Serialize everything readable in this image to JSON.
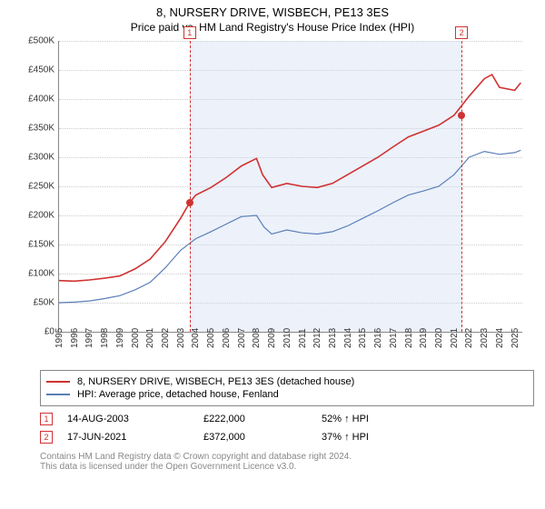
{
  "title_main": "8, NURSERY DRIVE, WISBECH, PE13 3ES",
  "title_sub": "Price paid vs. HM Land Registry's House Price Index (HPI)",
  "chart": {
    "type": "line",
    "background_color": "#ffffff",
    "grid_color": "#cccccc",
    "xlim": [
      1995,
      2025.5
    ],
    "ylim": [
      0,
      500000
    ],
    "ytick_step": 50000,
    "y_ticks": [
      "£0",
      "£50K",
      "£100K",
      "£150K",
      "£200K",
      "£250K",
      "£300K",
      "£350K",
      "£400K",
      "£450K",
      "£500K"
    ],
    "x_ticks": [
      1995,
      1996,
      1997,
      1998,
      1999,
      2000,
      2001,
      2002,
      2003,
      2004,
      2005,
      2006,
      2007,
      2008,
      2009,
      2010,
      2011,
      2012,
      2013,
      2014,
      2015,
      2016,
      2017,
      2018,
      2019,
      2020,
      2021,
      2022,
      2023,
      2024,
      2025
    ],
    "shade_from_year": 2003.6,
    "shade_to_year": 2021.5,
    "shade_color": "rgba(200,215,240,0.35)",
    "series": [
      {
        "name": "property",
        "color": "#d03232",
        "line_width": 1.6,
        "points": [
          [
            1995,
            88000
          ],
          [
            1996,
            87000
          ],
          [
            1997,
            89000
          ],
          [
            1998,
            92000
          ],
          [
            1999,
            96000
          ],
          [
            2000,
            108000
          ],
          [
            2001,
            125000
          ],
          [
            2002,
            155000
          ],
          [
            2003,
            195000
          ],
          [
            2003.6,
            222000
          ],
          [
            2004,
            235000
          ],
          [
            2005,
            248000
          ],
          [
            2006,
            265000
          ],
          [
            2007,
            285000
          ],
          [
            2008,
            298000
          ],
          [
            2008.4,
            270000
          ],
          [
            2009,
            248000
          ],
          [
            2010,
            255000
          ],
          [
            2011,
            250000
          ],
          [
            2012,
            248000
          ],
          [
            2013,
            255000
          ],
          [
            2014,
            270000
          ],
          [
            2015,
            285000
          ],
          [
            2016,
            300000
          ],
          [
            2017,
            318000
          ],
          [
            2018,
            335000
          ],
          [
            2019,
            345000
          ],
          [
            2020,
            355000
          ],
          [
            2021,
            372000
          ],
          [
            2022,
            405000
          ],
          [
            2023,
            435000
          ],
          [
            2023.5,
            442000
          ],
          [
            2024,
            420000
          ],
          [
            2025,
            415000
          ],
          [
            2025.4,
            428000
          ]
        ]
      },
      {
        "name": "hpi",
        "color": "#5b7fb8",
        "line_width": 1.2,
        "points": [
          [
            1995,
            50000
          ],
          [
            1996,
            51000
          ],
          [
            1997,
            53000
          ],
          [
            1998,
            57000
          ],
          [
            1999,
            62000
          ],
          [
            2000,
            72000
          ],
          [
            2001,
            85000
          ],
          [
            2002,
            110000
          ],
          [
            2003,
            140000
          ],
          [
            2004,
            160000
          ],
          [
            2005,
            172000
          ],
          [
            2006,
            185000
          ],
          [
            2007,
            198000
          ],
          [
            2008,
            200000
          ],
          [
            2008.5,
            180000
          ],
          [
            2009,
            168000
          ],
          [
            2010,
            175000
          ],
          [
            2011,
            170000
          ],
          [
            2012,
            168000
          ],
          [
            2013,
            172000
          ],
          [
            2014,
            182000
          ],
          [
            2015,
            195000
          ],
          [
            2016,
            208000
          ],
          [
            2017,
            222000
          ],
          [
            2018,
            235000
          ],
          [
            2019,
            242000
          ],
          [
            2020,
            250000
          ],
          [
            2021,
            270000
          ],
          [
            2022,
            300000
          ],
          [
            2023,
            310000
          ],
          [
            2024,
            305000
          ],
          [
            2025,
            308000
          ],
          [
            2025.4,
            312000
          ]
        ]
      }
    ],
    "sale_markers": [
      {
        "idx": "1",
        "year": 2003.6,
        "price": 222000
      },
      {
        "idx": "2",
        "year": 2021.5,
        "price": 372000
      }
    ],
    "label_fontsize": 10
  },
  "legend": {
    "items": [
      {
        "color": "#d03232",
        "label": "8, NURSERY DRIVE, WISBECH, PE13 3ES (detached house)"
      },
      {
        "color": "#5b7fb8",
        "label": "HPI: Average price, detached house, Fenland"
      }
    ]
  },
  "sales": [
    {
      "idx": "1",
      "date": "14-AUG-2003",
      "price": "£222,000",
      "delta": "52% ↑ HPI"
    },
    {
      "idx": "2",
      "date": "17-JUN-2021",
      "price": "£372,000",
      "delta": "37% ↑ HPI"
    }
  ],
  "footer_line1": "Contains HM Land Registry data © Crown copyright and database right 2024.",
  "footer_line2": "This data is licensed under the Open Government Licence v3.0."
}
